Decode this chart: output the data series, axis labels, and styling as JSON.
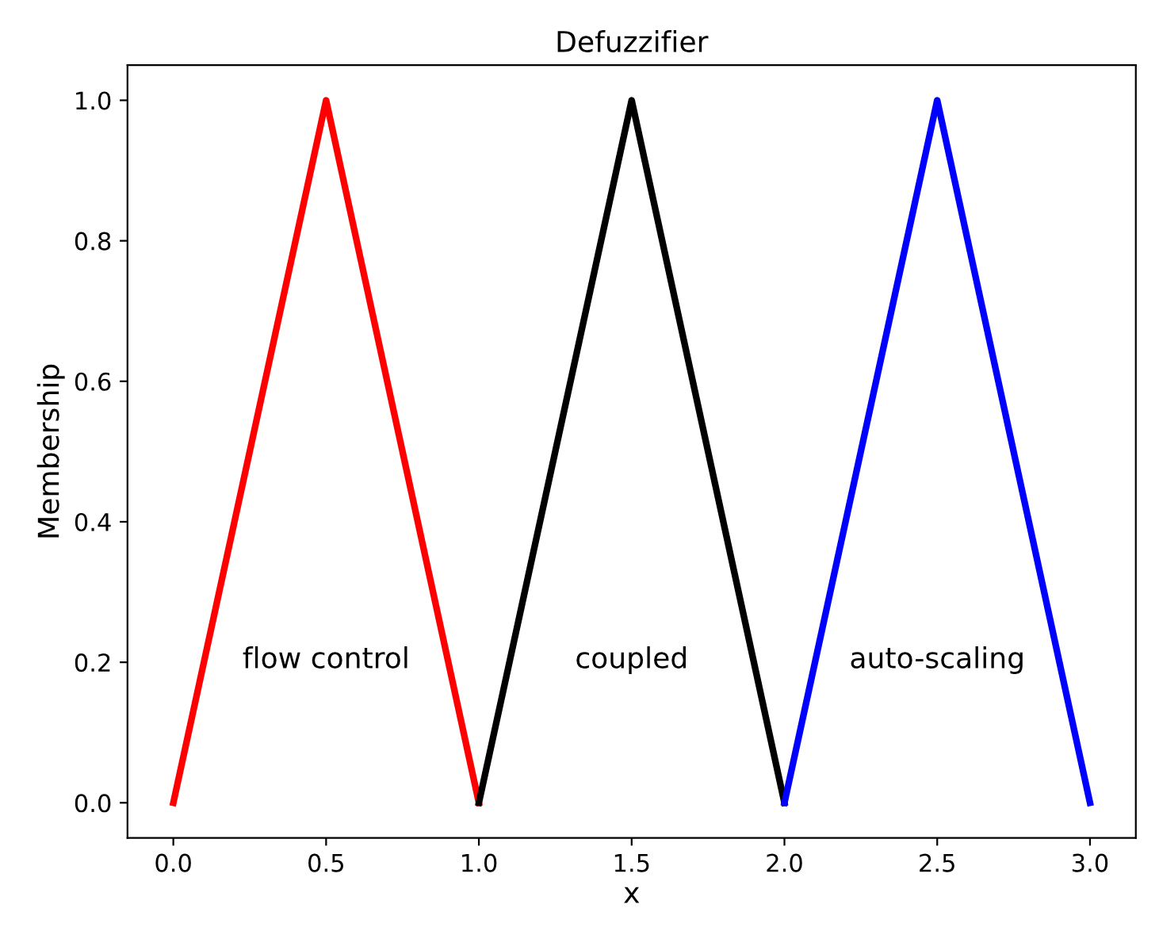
{
  "chart_data": {
    "type": "line",
    "title": "Defuzzifier",
    "xlabel": "x",
    "ylabel": "Membership",
    "series": [
      {
        "name": "flow control",
        "x": [
          0.0,
          0.5,
          1.0
        ],
        "values": [
          0.0,
          1.0,
          0.0
        ],
        "color": "#ff0000"
      },
      {
        "name": "coupled",
        "x": [
          1.0,
          1.5,
          2.0
        ],
        "values": [
          0.0,
          1.0,
          0.0
        ],
        "color": "#000000"
      },
      {
        "name": "auto-scaling",
        "x": [
          2.0,
          2.5,
          3.0
        ],
        "values": [
          0.0,
          1.0,
          0.0
        ],
        "color": "#0000ff"
      }
    ],
    "xlim": [
      -0.15,
      3.15
    ],
    "ylim": [
      -0.05,
      1.05
    ],
    "xticks": [
      {
        "value": 0,
        "label": "0.0"
      },
      0.5,
      {
        "value": 1,
        "label": "1.0"
      },
      1.5,
      {
        "value": 2,
        "label": "2.0"
      },
      2.5,
      {
        "value": 3,
        "label": "3.0"
      }
    ],
    "yticks": [
      {
        "value": 0,
        "label": "0.0"
      },
      0.2,
      0.4,
      0.6,
      0.8,
      {
        "value": 1,
        "label": "1.0"
      }
    ],
    "line_style": "solid",
    "marker": "none"
  }
}
